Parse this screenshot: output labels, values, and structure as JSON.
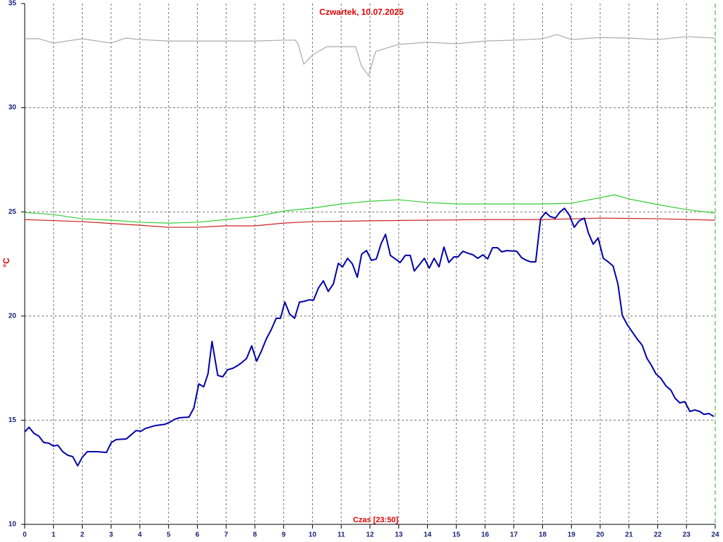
{
  "chart_data": {
    "type": "line",
    "title": "Czwartek, 10.07.2025",
    "y_label": "°C",
    "x_label": "Czas [23:50]",
    "xlim": [
      0,
      24
    ],
    "xticks": [
      0,
      1,
      2,
      3,
      4,
      5,
      6,
      7,
      8,
      9,
      10,
      11,
      12,
      13,
      14,
      15,
      16,
      17,
      18,
      19,
      20,
      21,
      22,
      23,
      24
    ],
    "ylim": [
      10,
      35
    ],
    "yticks": [
      10,
      15,
      20,
      25,
      30,
      35
    ],
    "grid": true,
    "series": [
      {
        "color": "#aaaaaa",
        "x": [
          0,
          0.5,
          1,
          2,
          3,
          3.5,
          4,
          5,
          6,
          7,
          8,
          9,
          9.4,
          9.5,
          9.7,
          10,
          10.5,
          11.5,
          11.7,
          11.95,
          12.2,
          13,
          14,
          15,
          16,
          17,
          18,
          18.5,
          19,
          20,
          21,
          22,
          23,
          24
        ],
        "values": [
          33.31,
          33.31,
          33.1,
          33.31,
          33.1,
          33.34,
          33.27,
          33.2,
          33.2,
          33.2,
          33.2,
          33.24,
          33.24,
          33.07,
          32.09,
          32.53,
          32.93,
          32.93,
          32.02,
          31.54,
          32.7,
          33.04,
          33.14,
          33.07,
          33.2,
          33.24,
          33.31,
          33.51,
          33.27,
          33.37,
          33.34,
          33.27,
          33.41,
          33.34
        ]
      },
      {
        "color": "#33cc33",
        "x": [
          0,
          1,
          2,
          3,
          4,
          5,
          6,
          7,
          8,
          9,
          10,
          11,
          12,
          13,
          14,
          15,
          16,
          17,
          18,
          19,
          20,
          20.5,
          21,
          22,
          23,
          24
        ],
        "values": [
          24.97,
          24.87,
          24.67,
          24.6,
          24.5,
          24.46,
          24.5,
          24.63,
          24.77,
          25.04,
          25.18,
          25.38,
          25.51,
          25.58,
          25.45,
          25.38,
          25.38,
          25.38,
          25.38,
          25.41,
          25.68,
          25.82,
          25.62,
          25.35,
          25.11,
          24.94
        ]
      },
      {
        "color": "#cc2222",
        "x": [
          0,
          2,
          4,
          5,
          6,
          7,
          8,
          9,
          10,
          12,
          14,
          16,
          18,
          20,
          22,
          24
        ],
        "values": [
          24.63,
          24.53,
          24.36,
          24.26,
          24.26,
          24.33,
          24.33,
          24.46,
          24.53,
          24.57,
          24.6,
          24.63,
          24.63,
          24.7,
          24.67,
          24.6
        ]
      },
      {
        "color": "#0000aa",
        "x": [
          0,
          0.15,
          0.32,
          0.49,
          0.66,
          0.83,
          1,
          1.15,
          1.32,
          1.49,
          1.67,
          1.84,
          2,
          2.18,
          2.52,
          2.84,
          3.01,
          3.18,
          3.53,
          3.7,
          3.87,
          4.04,
          4.19,
          4.53,
          4.87,
          5.05,
          5.22,
          5.39,
          5.71,
          5.88,
          6.05,
          6.22,
          6.37,
          6.51,
          6.71,
          6.88,
          7.05,
          7.23,
          7.4,
          7.54,
          7.71,
          7.89,
          8.06,
          8.23,
          8.4,
          8.57,
          8.74,
          8.89,
          9.04,
          9.21,
          9.38,
          9.55,
          9.7,
          9.87,
          10.04,
          10.21,
          10.38,
          10.55,
          10.73,
          10.9,
          11.05,
          11.22,
          11.39,
          11.56,
          11.71,
          11.88,
          12.05,
          12.22,
          12.39,
          12.54,
          12.71,
          12.88,
          13.05,
          13.23,
          13.4,
          13.54,
          13.72,
          13.89,
          14.06,
          14.23,
          14.4,
          14.57,
          14.74,
          14.92,
          15.06,
          15.23,
          15.41,
          15.58,
          15.75,
          15.92,
          16.09,
          16.26,
          16.43,
          16.58,
          16.75,
          17.1,
          17.27,
          17.44,
          17.59,
          17.76,
          17.93,
          18.1,
          18.27,
          18.44,
          18.61,
          18.76,
          18.93,
          19.1,
          19.27,
          19.45,
          19.59,
          19.76,
          19.93,
          20.11,
          20.28,
          20.45,
          20.62,
          20.77,
          20.94,
          21.11,
          21.28,
          21.46,
          21.63,
          21.77,
          21.94,
          22.11,
          22.29,
          22.46,
          22.6,
          22.77,
          22.94,
          23.12,
          23.29,
          23.46,
          23.61,
          23.78,
          23.95
        ],
        "values": [
          14.44,
          14.66,
          14.37,
          14.24,
          13.93,
          13.9,
          13.76,
          13.8,
          13.49,
          13.32,
          13.25,
          12.81,
          13.22,
          13.49,
          13.49,
          13.45,
          13.93,
          14.07,
          14.1,
          14.3,
          14.5,
          14.47,
          14.6,
          14.74,
          14.8,
          14.91,
          15.05,
          15.12,
          15.15,
          15.59,
          16.74,
          16.6,
          17.22,
          18.78,
          17.15,
          17.08,
          17.42,
          17.49,
          17.62,
          17.76,
          17.96,
          18.57,
          17.83,
          18.33,
          18.91,
          19.35,
          19.89,
          19.89,
          20.67,
          20.09,
          19.89,
          20.67,
          20.7,
          20.77,
          20.77,
          21.35,
          21.69,
          21.18,
          21.55,
          22.53,
          22.36,
          22.77,
          22.5,
          21.86,
          22.97,
          23.14,
          22.67,
          22.74,
          23.48,
          23.92,
          22.91,
          22.74,
          22.57,
          22.91,
          22.91,
          22.16,
          22.47,
          22.77,
          22.3,
          22.77,
          22.36,
          23.31,
          22.57,
          22.84,
          22.84,
          23.11,
          23.01,
          22.94,
          22.77,
          22.94,
          22.74,
          23.28,
          23.28,
          23.08,
          23.14,
          23.11,
          22.8,
          22.67,
          22.6,
          22.6,
          24.67,
          24.97,
          24.77,
          24.7,
          25.0,
          25.17,
          24.84,
          24.26,
          24.57,
          24.7,
          23.99,
          23.45,
          23.75,
          22.77,
          22.6,
          22.4,
          21.52,
          20.03,
          19.59,
          19.25,
          18.91,
          18.6,
          17.96,
          17.66,
          17.22,
          17.01,
          16.64,
          16.44,
          16.06,
          15.83,
          15.89,
          15.42,
          15.49,
          15.42,
          15.28,
          15.32,
          15.18
        ]
      }
    ]
  }
}
